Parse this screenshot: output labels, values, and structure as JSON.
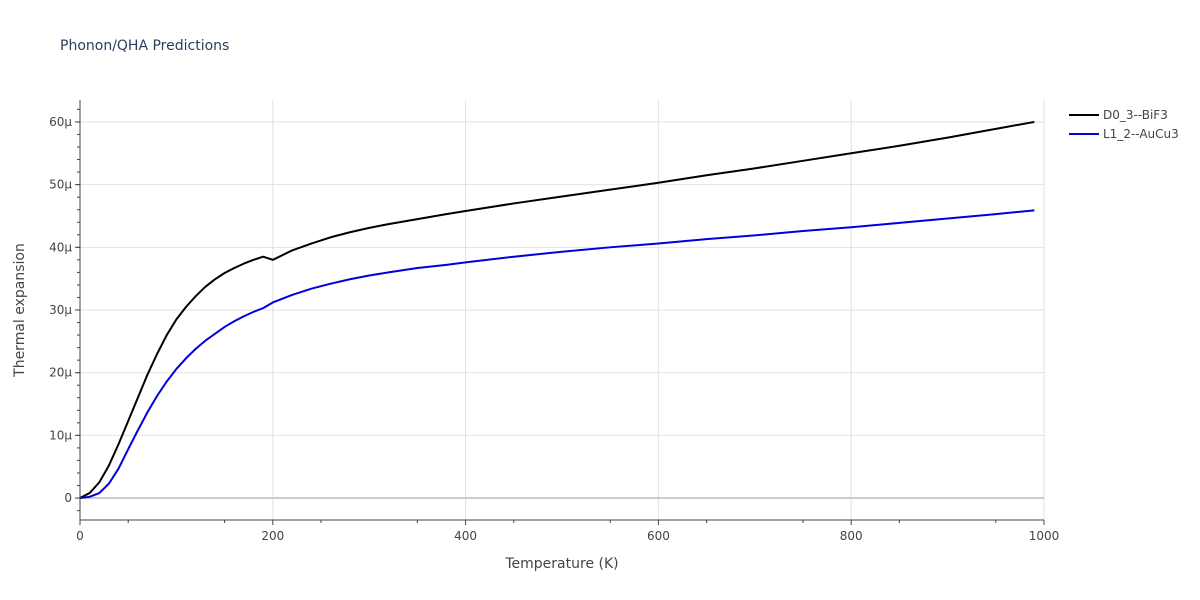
{
  "chart_data": {
    "type": "line",
    "title": "Phonon/QHA Predictions",
    "xlabel": "Temperature (K)",
    "ylabel": "Thermal expansion",
    "xlim": [
      0,
      1000
    ],
    "ylim": [
      -3.5e-06,
      6.35e-05
    ],
    "xticks": [
      0,
      200,
      400,
      600,
      800,
      1000
    ],
    "xtick_labels": [
      "0",
      "200",
      "400",
      "600",
      "800",
      "1000"
    ],
    "yticks": [
      0,
      1e-05,
      2e-05,
      3e-05,
      4e-05,
      5e-05,
      6e-05
    ],
    "ytick_labels": [
      "0",
      "10μ",
      "20μ",
      "30μ",
      "40μ",
      "50μ",
      "60μ"
    ],
    "grid": true,
    "legend_position": "top-right",
    "series": [
      {
        "name": "D0_3--BiF3",
        "color": "#000000",
        "x": [
          0,
          10,
          20,
          30,
          40,
          50,
          60,
          70,
          80,
          90,
          100,
          110,
          120,
          130,
          140,
          150,
          160,
          170,
          180,
          190,
          200,
          220,
          240,
          260,
          280,
          300,
          320,
          350,
          380,
          400,
          450,
          500,
          550,
          600,
          650,
          700,
          750,
          800,
          850,
          900,
          950,
          990
        ],
        "y": [
          0,
          8e-07,
          2.5e-06,
          5.2e-06,
          8.6e-06,
          1.23e-05,
          1.6e-05,
          1.97e-05,
          2.3e-05,
          2.6e-05,
          2.85e-05,
          3.05e-05,
          3.22e-05,
          3.37e-05,
          3.49e-05,
          3.59e-05,
          3.67e-05,
          3.74e-05,
          3.8e-05,
          3.85e-05,
          3.8e-05,
          3.95e-05,
          4.06e-05,
          4.16e-05,
          4.24e-05,
          4.31e-05,
          4.37e-05,
          4.45e-05,
          4.53e-05,
          4.58e-05,
          4.7e-05,
          4.81e-05,
          4.92e-05,
          5.03e-05,
          5.15e-05,
          5.26e-05,
          5.38e-05,
          5.5e-05,
          5.62e-05,
          5.75e-05,
          5.89e-05,
          6e-05
        ]
      },
      {
        "name": "L1_2--AuCu3",
        "color": "#0000dd",
        "x": [
          0,
          10,
          20,
          30,
          40,
          50,
          60,
          70,
          80,
          90,
          100,
          110,
          120,
          130,
          140,
          150,
          160,
          170,
          180,
          190,
          200,
          220,
          240,
          260,
          280,
          300,
          320,
          350,
          380,
          400,
          450,
          500,
          550,
          600,
          650,
          700,
          750,
          800,
          850,
          900,
          950,
          990
        ],
        "y": [
          0,
          2e-07,
          8e-07,
          2.3e-06,
          4.7e-06,
          7.8e-06,
          1.08e-05,
          1.37e-05,
          1.63e-05,
          1.86e-05,
          2.06e-05,
          2.23e-05,
          2.38e-05,
          2.51e-05,
          2.62e-05,
          2.73e-05,
          2.82e-05,
          2.9e-05,
          2.97e-05,
          3.03e-05,
          3.12e-05,
          3.24e-05,
          3.34e-05,
          3.42e-05,
          3.49e-05,
          3.55e-05,
          3.6e-05,
          3.67e-05,
          3.72e-05,
          3.76e-05,
          3.85e-05,
          3.93e-05,
          4e-05,
          4.06e-05,
          4.13e-05,
          4.19e-05,
          4.26e-05,
          4.32e-05,
          4.39e-05,
          4.46e-05,
          4.53e-05,
          4.59e-05
        ]
      }
    ]
  }
}
